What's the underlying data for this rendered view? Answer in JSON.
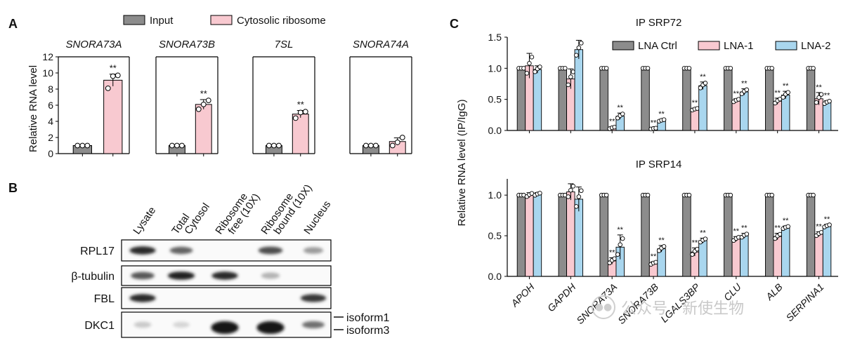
{
  "panels": {
    "A": "A",
    "B": "B",
    "C": "C"
  },
  "colors": {
    "input": "#8c8c8c",
    "ribosome": "#f8c9d0",
    "lna_ctrl": "#8c8c8c",
    "lna1": "#f8c9d0",
    "lna2": "#a9d6ee"
  },
  "chart_data": [
    {
      "type": "bar",
      "panel": "A",
      "ylabel": "Relative RNA level",
      "ylim": [
        0,
        12
      ],
      "yticks": [
        0,
        2,
        4,
        6,
        8,
        10,
        12
      ],
      "legend": [
        "Input",
        "Cytosolic ribosome"
      ],
      "subplots": [
        {
          "title": "SNORA73A",
          "values": [
            1,
            9.1
          ],
          "errors": [
            0.05,
            0.75
          ],
          "points": [
            [
              1,
              1,
              1
            ],
            [
              8.1,
              9.6,
              9.7
            ]
          ],
          "sig": [
            "",
            "**"
          ]
        },
        {
          "title": "SNORA73B",
          "values": [
            1,
            6.1
          ],
          "errors": [
            0.05,
            0.6
          ],
          "points": [
            [
              1,
              1,
              1
            ],
            [
              5.5,
              6.1,
              6.6
            ]
          ],
          "sig": [
            "",
            "**"
          ]
        },
        {
          "title": "7SL",
          "values": [
            1,
            4.9
          ],
          "errors": [
            0.05,
            0.45
          ],
          "points": [
            [
              1,
              1,
              1
            ],
            [
              4.4,
              5.1,
              5.2
            ]
          ],
          "sig": [
            "",
            "**"
          ]
        },
        {
          "title": "SNORA74A",
          "values": [
            1,
            1.5
          ],
          "errors": [
            0.05,
            0.45
          ],
          "points": [
            [
              1,
              1,
              1
            ],
            [
              1.0,
              1.4,
              2.0
            ]
          ],
          "sig": [
            "",
            ""
          ]
        }
      ]
    },
    {
      "type": "bar",
      "panel": "C",
      "ylabel": "Relative RNA level (IP/IgG)",
      "legend": [
        "LNA Ctrl",
        "LNA-1",
        "LNA-2"
      ],
      "categories": [
        "APOH",
        "GAPDH",
        "SNORA73A",
        "SNORA73B",
        "LGALS3BP",
        "CLU",
        "ALB",
        "SERPINA1"
      ],
      "subplots": [
        {
          "title": "IP SRP72",
          "ylim": [
            0,
            1.5
          ],
          "yticks": [
            "0.0",
            "0.5",
            "1.0",
            "1.5"
          ],
          "series": [
            {
              "name": "LNA Ctrl",
              "values": [
                1,
                1,
                1,
                1,
                1,
                1,
                1,
                1
              ],
              "errors": [
                0,
                0,
                0,
                0,
                0,
                0,
                0,
                0
              ]
            },
            {
              "name": "LNA-1",
              "values": [
                1.04,
                0.83,
                0.04,
                0.03,
                0.34,
                0.48,
                0.47,
                0.51
              ],
              "errors": [
                0.2,
                0.16,
                0.02,
                0.01,
                0.02,
                0.03,
                0.05,
                0.1
              ]
            },
            {
              "name": "LNA-2",
              "values": [
                0.98,
                1.3,
                0.23,
                0.16,
                0.72,
                0.62,
                0.57,
                0.45
              ],
              "errors": [
                0.06,
                0.15,
                0.05,
                0.02,
                0.06,
                0.05,
                0.06,
                0.03
              ]
            }
          ],
          "sig": [
            [
              "",
              "",
              ""
            ],
            [
              "",
              "",
              ""
            ],
            [
              "",
              "**",
              "**"
            ],
            [
              "",
              "**",
              "**"
            ],
            [
              "",
              "**",
              "**"
            ],
            [
              "",
              "**",
              "**"
            ],
            [
              "",
              "**",
              "**"
            ],
            [
              "",
              "**",
              "**"
            ]
          ]
        },
        {
          "title": "IP SRP14",
          "ylim": [
            0,
            1.2
          ],
          "yticks": [
            "0.0",
            "0.5",
            "1.0"
          ],
          "series": [
            {
              "name": "LNA Ctrl",
              "values": [
                1,
                1,
                1,
                1,
                1,
                1,
                1,
                1
              ],
              "errors": [
                0,
                0,
                0,
                0,
                0,
                0,
                0,
                0
              ]
            },
            {
              "name": "LNA-1",
              "values": [
                1.0,
                1.04,
                0.19,
                0.16,
                0.3,
                0.46,
                0.49,
                0.52
              ],
              "errors": [
                0.03,
                0.1,
                0.04,
                0.02,
                0.05,
                0.03,
                0.04,
                0.03
              ]
            },
            {
              "name": "LNA-2",
              "values": [
                1.01,
                0.95,
                0.36,
                0.34,
                0.44,
                0.5,
                0.6,
                0.62
              ],
              "errors": [
                0.02,
                0.15,
                0.15,
                0.04,
                0.03,
                0.03,
                0.02,
                0.02
              ]
            }
          ],
          "sig": [
            [
              "",
              "",
              ""
            ],
            [
              "",
              "",
              ""
            ],
            [
              "",
              "**",
              "**"
            ],
            [
              "",
              "**",
              "**"
            ],
            [
              "",
              "**",
              "**"
            ],
            [
              "",
              "**",
              "**"
            ],
            [
              "",
              "**",
              "**"
            ],
            [
              "",
              "**",
              "**"
            ]
          ]
        }
      ]
    }
  ],
  "western_blot": {
    "lanes": [
      "Lysate",
      "Total Cytosol",
      "Ribosome free (10X)",
      "Ribosome bound (10X)",
      "Nucleus"
    ],
    "rows": [
      {
        "label": "RPL17",
        "intensity": [
          0.85,
          0.6,
          0,
          0.7,
          0.35
        ]
      },
      {
        "label": "β-tubulin",
        "intensity": [
          0.65,
          0.9,
          0.85,
          0.25,
          0
        ]
      },
      {
        "label": "FBL",
        "intensity": [
          0.85,
          0,
          0,
          0,
          0.8
        ]
      },
      {
        "label": "DKC1",
        "intensity": [
          0.15,
          0.1,
          0.95,
          0.95,
          0.55
        ]
      }
    ],
    "isoforms": [
      "isoform1",
      "isoform3"
    ]
  },
  "watermark": {
    "text": "公众号 · 新使生物",
    "icon": "wechat-icon"
  }
}
